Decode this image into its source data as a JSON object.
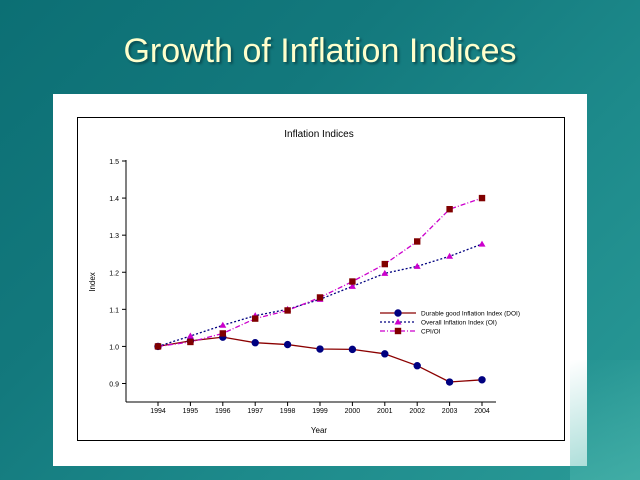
{
  "slide": {
    "title": "Growth of Inflation Indices"
  },
  "colors": {
    "background": "#13797d",
    "title": "#ffffcc",
    "doi": "#000080",
    "doi_line": "#8b0000",
    "oi": "#cc00cc",
    "oi_line": "#000080",
    "cpi": "#800000",
    "cpi_line": "#cc00cc"
  },
  "chart_data": {
    "type": "line",
    "title": "Inflation Indices",
    "xlabel": "Year",
    "ylabel": "Index",
    "x": [
      "1994",
      "1995",
      "1996",
      "1997",
      "1998",
      "1999",
      "2000",
      "2001",
      "2002",
      "2003",
      "2004"
    ],
    "y_ticks": [
      "0.9",
      "1.0",
      "1.1",
      "1.2",
      "1.3",
      "1.4",
      "1.5"
    ],
    "ylim": [
      0.9,
      1.5
    ],
    "grid": false,
    "legend_position": "center-right",
    "series": [
      {
        "name": "Durable good Inflation Index (DOI)",
        "marker": "circle",
        "values": [
          1.0,
          1.015,
          1.025,
          1.01,
          1.005,
          0.993,
          0.992,
          0.98,
          0.948,
          0.904,
          0.91
        ]
      },
      {
        "name": "Overall Inflation Index (OI)",
        "marker": "triangle",
        "values": [
          1.0,
          1.028,
          1.057,
          1.083,
          1.1,
          1.127,
          1.162,
          1.197,
          1.216,
          1.243,
          1.276
        ]
      },
      {
        "name": "CPI/OI",
        "marker": "square",
        "values": [
          1.0,
          1.012,
          1.035,
          1.075,
          1.097,
          1.132,
          1.175,
          1.222,
          1.283,
          1.37,
          1.4
        ]
      }
    ]
  }
}
